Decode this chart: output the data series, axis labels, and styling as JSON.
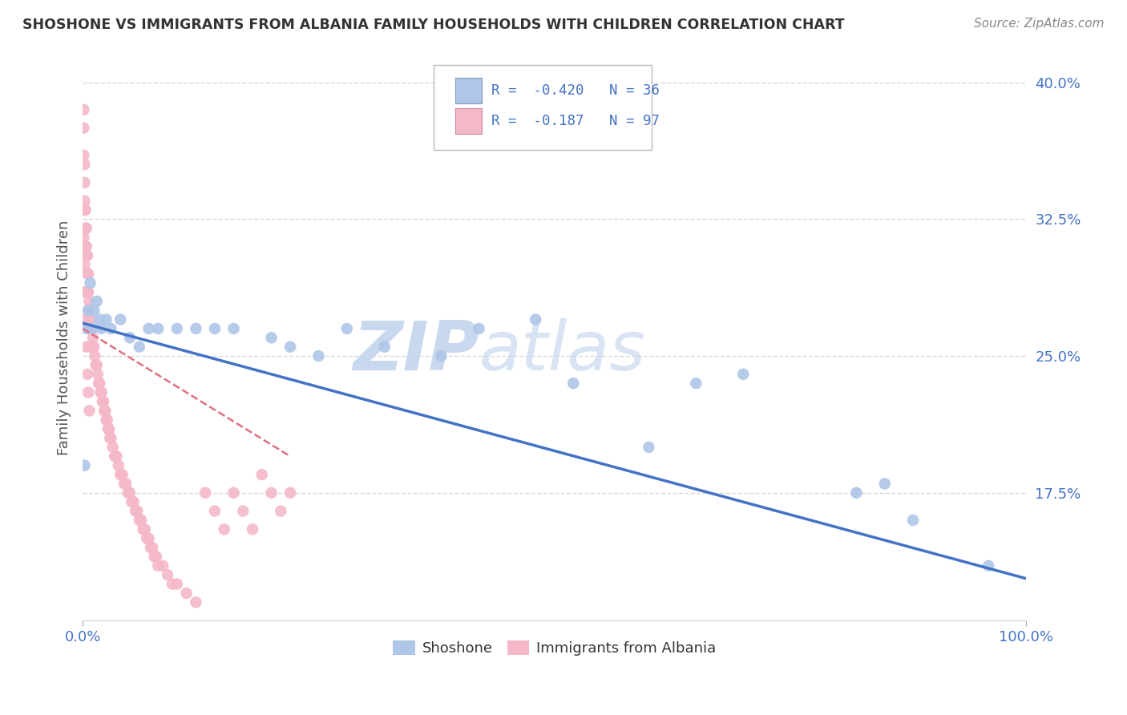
{
  "title": "SHOSHONE VS IMMIGRANTS FROM ALBANIA FAMILY HOUSEHOLDS WITH CHILDREN CORRELATION CHART",
  "source": "Source: ZipAtlas.com",
  "ylabel": "Family Households with Children",
  "yticks": [
    0.175,
    0.25,
    0.325,
    0.4
  ],
  "ytick_labels": [
    "17.5%",
    "25.0%",
    "32.5%",
    "40.0%"
  ],
  "xtick_labels": [
    "0.0%",
    "100.0%"
  ],
  "xlim": [
    0.0,
    1.0
  ],
  "ylim": [
    0.105,
    0.415
  ],
  "shoshone_R": -0.42,
  "shoshone_N": 36,
  "albania_R": -0.187,
  "albania_N": 97,
  "shoshone_color": "#aec6e8",
  "albania_color": "#f4b8c8",
  "shoshone_line_color": "#4472c4",
  "albania_line_color": "#e07080",
  "watermark_color": "#d0dff0",
  "background_color": "#ffffff",
  "grid_color": "#d8d8d8",
  "shoshone_x": [
    0.002,
    0.004,
    0.006,
    0.008,
    0.01,
    0.012,
    0.015,
    0.018,
    0.02,
    0.025,
    0.03,
    0.04,
    0.05,
    0.06,
    0.07,
    0.08,
    0.1,
    0.12,
    0.14,
    0.16,
    0.2,
    0.22,
    0.25,
    0.28,
    0.32,
    0.38,
    0.42,
    0.48,
    0.52,
    0.6,
    0.65,
    0.7,
    0.82,
    0.85,
    0.88,
    0.96
  ],
  "shoshone_y": [
    0.19,
    0.265,
    0.275,
    0.29,
    0.265,
    0.275,
    0.28,
    0.27,
    0.265,
    0.27,
    0.265,
    0.27,
    0.26,
    0.255,
    0.265,
    0.265,
    0.265,
    0.265,
    0.265,
    0.265,
    0.26,
    0.255,
    0.25,
    0.265,
    0.255,
    0.25,
    0.265,
    0.27,
    0.235,
    0.2,
    0.235,
    0.24,
    0.175,
    0.18,
    0.16,
    0.135
  ],
  "albania_x": [
    0.001,
    0.001,
    0.001,
    0.002,
    0.002,
    0.002,
    0.003,
    0.003,
    0.003,
    0.004,
    0.004,
    0.004,
    0.005,
    0.005,
    0.005,
    0.006,
    0.006,
    0.006,
    0.007,
    0.007,
    0.007,
    0.008,
    0.008,
    0.009,
    0.009,
    0.01,
    0.01,
    0.011,
    0.012,
    0.013,
    0.014,
    0.015,
    0.016,
    0.017,
    0.018,
    0.019,
    0.02,
    0.021,
    0.022,
    0.023,
    0.024,
    0.025,
    0.026,
    0.027,
    0.028,
    0.029,
    0.03,
    0.032,
    0.034,
    0.036,
    0.038,
    0.04,
    0.042,
    0.044,
    0.046,
    0.048,
    0.05,
    0.052,
    0.054,
    0.056,
    0.058,
    0.06,
    0.062,
    0.064,
    0.066,
    0.068,
    0.07,
    0.072,
    0.074,
    0.076,
    0.078,
    0.08,
    0.085,
    0.09,
    0.095,
    0.1,
    0.11,
    0.12,
    0.13,
    0.14,
    0.15,
    0.16,
    0.17,
    0.18,
    0.19,
    0.2,
    0.21,
    0.22,
    0.001,
    0.001,
    0.002,
    0.002,
    0.003,
    0.004,
    0.005,
    0.006,
    0.007,
    0.008
  ],
  "albania_y": [
    0.385,
    0.375,
    0.36,
    0.355,
    0.345,
    0.335,
    0.33,
    0.32,
    0.31,
    0.32,
    0.31,
    0.305,
    0.305,
    0.295,
    0.285,
    0.295,
    0.285,
    0.275,
    0.28,
    0.27,
    0.265,
    0.27,
    0.265,
    0.265,
    0.255,
    0.265,
    0.255,
    0.26,
    0.255,
    0.25,
    0.245,
    0.245,
    0.24,
    0.235,
    0.235,
    0.23,
    0.23,
    0.225,
    0.225,
    0.22,
    0.22,
    0.215,
    0.215,
    0.21,
    0.21,
    0.205,
    0.205,
    0.2,
    0.195,
    0.195,
    0.19,
    0.185,
    0.185,
    0.18,
    0.18,
    0.175,
    0.175,
    0.17,
    0.17,
    0.165,
    0.165,
    0.16,
    0.16,
    0.155,
    0.155,
    0.15,
    0.15,
    0.145,
    0.145,
    0.14,
    0.14,
    0.135,
    0.135,
    0.13,
    0.125,
    0.125,
    0.12,
    0.115,
    0.175,
    0.165,
    0.155,
    0.175,
    0.165,
    0.155,
    0.185,
    0.175,
    0.165,
    0.175,
    0.33,
    0.315,
    0.3,
    0.285,
    0.27,
    0.255,
    0.24,
    0.23,
    0.22,
    0.265
  ],
  "sho_line_x0": 0.0,
  "sho_line_x1": 1.0,
  "sho_line_y0": 0.268,
  "sho_line_y1": 0.128,
  "alb_line_x0": 0.0,
  "alb_line_x1": 0.22,
  "alb_line_y0": 0.265,
  "alb_line_y1": 0.195
}
